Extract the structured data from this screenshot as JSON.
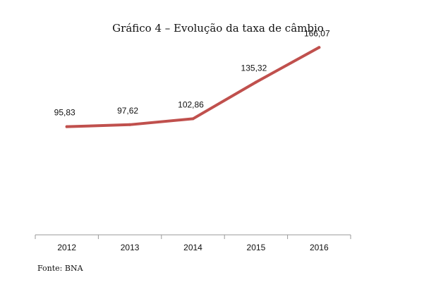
{
  "chart_data": {
    "type": "line",
    "title": "Gráfico 4 – Evolução da taxa de câmbio",
    "categories": [
      "2012",
      "2013",
      "2014",
      "2015",
      "2016"
    ],
    "series": [
      {
        "values": [
          95.83,
          97.62,
          102.86,
          135.32,
          166.07
        ],
        "data_labels": [
          "95,83",
          "97,62",
          "102,86",
          "135,32",
          "166,07"
        ],
        "color": "#c0504d"
      }
    ],
    "xlabel": "",
    "ylabel": "",
    "ylim": [
      0,
      180
    ],
    "grid": false,
    "legend": "none",
    "source_note": "Fonte: BNA"
  }
}
